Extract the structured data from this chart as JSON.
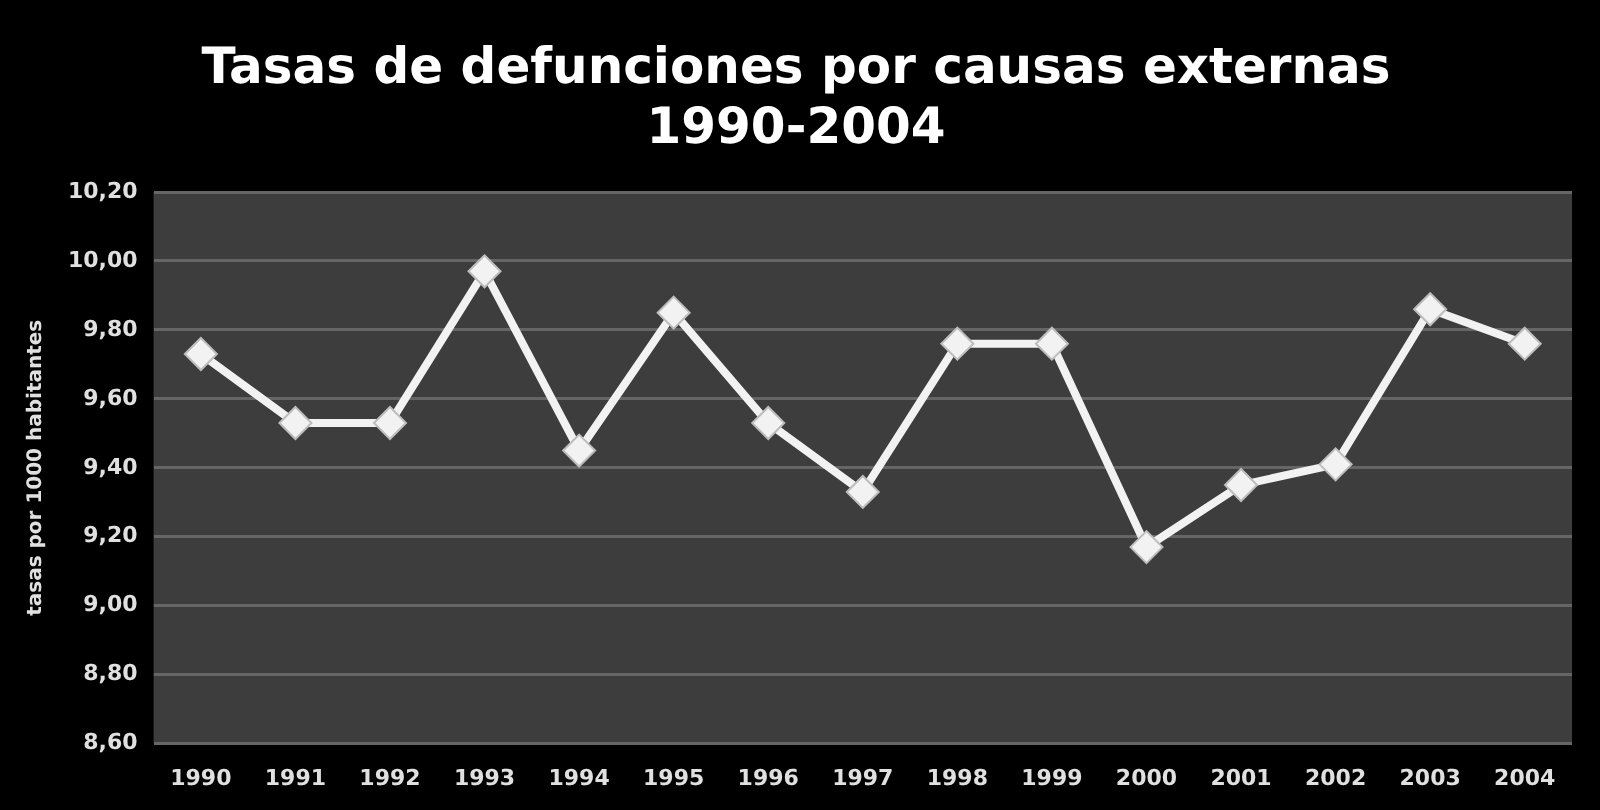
{
  "chart_data": {
    "type": "line",
    "title": "Tasas de defunciones por causas externas\n1990-2004",
    "ylabel": "tasas por 1000 habitantes",
    "categories": [
      "1990",
      "1991",
      "1992",
      "1993",
      "1994",
      "1995",
      "1996",
      "1997",
      "1998",
      "1999",
      "2000",
      "2001",
      "2002",
      "2003",
      "2004"
    ],
    "values": [
      9.73,
      9.53,
      9.53,
      9.97,
      9.45,
      9.85,
      9.53,
      9.33,
      9.76,
      9.76,
      9.17,
      9.35,
      9.41,
      9.86,
      9.76
    ],
    "color": "#f2f2f2",
    "marker": "diamond",
    "line_style": "solid",
    "grid": "y",
    "legend": false,
    "ylim": [
      8.6,
      10.2
    ],
    "yticks": [
      {
        "value": 8.6,
        "label": "8,60"
      },
      {
        "value": 8.8,
        "label": "8,80"
      },
      {
        "value": 9.0,
        "label": "9,00"
      },
      {
        "value": 9.2,
        "label": "9,20"
      },
      {
        "value": 9.4,
        "label": "9,40"
      },
      {
        "value": 9.6,
        "label": "9,60"
      },
      {
        "value": 9.8,
        "label": "9,80"
      },
      {
        "value": 10.0,
        "label": "10,00"
      },
      {
        "value": 10.2,
        "label": "10,20"
      }
    ]
  }
}
